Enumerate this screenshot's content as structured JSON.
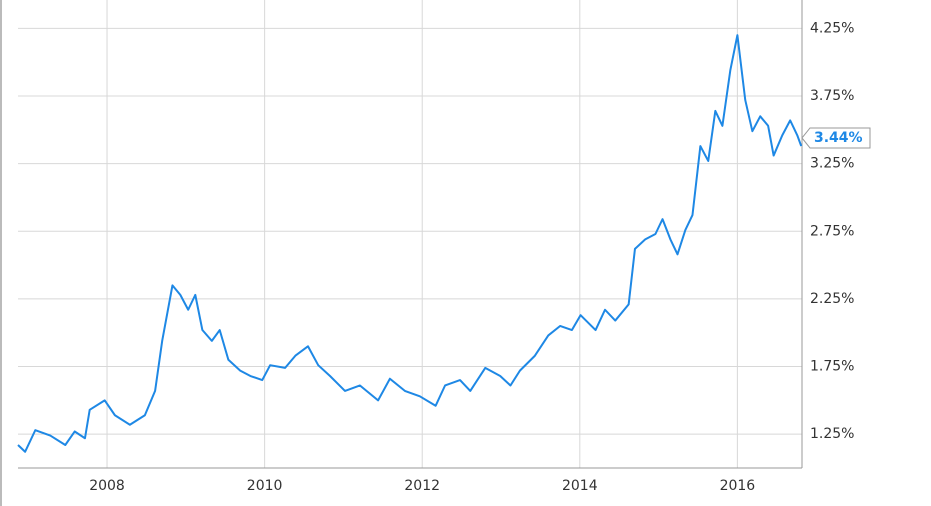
{
  "chart_data": {
    "type": "line",
    "x": [
      2006.87,
      2006.96,
      2007.09,
      2007.28,
      2007.47,
      2007.59,
      2007.72,
      2007.78,
      2007.97,
      2008.1,
      2008.29,
      2008.48,
      2008.61,
      2008.7,
      2008.83,
      2008.93,
      2009.03,
      2009.12,
      2009.21,
      2009.33,
      2009.43,
      2009.54,
      2009.69,
      2009.82,
      2009.97,
      2010.07,
      2010.26,
      2010.39,
      2010.55,
      2010.68,
      2010.83,
      2011.02,
      2011.21,
      2011.44,
      2011.59,
      2011.78,
      2011.97,
      2012.17,
      2012.29,
      2012.48,
      2012.61,
      2012.8,
      2012.99,
      2013.12,
      2013.24,
      2013.43,
      2013.6,
      2013.75,
      2013.9,
      2014.01,
      2014.2,
      2014.32,
      2014.45,
      2014.62,
      2014.7,
      2014.83,
      2014.96,
      2015.05,
      2015.15,
      2015.24,
      2015.34,
      2015.43,
      2015.53,
      2015.63,
      2015.72,
      2015.81,
      2015.91,
      2016.0,
      2016.1,
      2016.19,
      2016.29,
      2016.39,
      2016.46,
      2016.57,
      2016.67,
      2016.76,
      2016.81
    ],
    "series": [
      {
        "color": "#1e88e5",
        "values": [
          1.17,
          1.12,
          1.28,
          1.24,
          1.17,
          1.27,
          1.22,
          1.43,
          1.5,
          1.39,
          1.32,
          1.39,
          1.57,
          1.94,
          2.35,
          2.28,
          2.17,
          2.28,
          2.02,
          1.94,
          2.02,
          1.8,
          1.72,
          1.68,
          1.65,
          1.76,
          1.74,
          1.83,
          1.9,
          1.76,
          1.68,
          1.57,
          1.61,
          1.5,
          1.66,
          1.57,
          1.53,
          1.46,
          1.61,
          1.65,
          1.57,
          1.74,
          1.68,
          1.61,
          1.72,
          1.83,
          1.98,
          2.05,
          2.02,
          2.13,
          2.02,
          2.17,
          2.09,
          2.21,
          2.62,
          2.69,
          2.73,
          2.84,
          2.69,
          2.58,
          2.76,
          2.87,
          3.38,
          3.27,
          3.64,
          3.53,
          3.94,
          4.2,
          3.72,
          3.49,
          3.6,
          3.53,
          3.31,
          3.46,
          3.57,
          3.46,
          3.38
        ]
      }
    ],
    "current": {
      "value": 3.44,
      "label": "3.44%"
    },
    "xlim": [
      2006.87,
      2016.82
    ],
    "xticks": [
      2008,
      2010,
      2012,
      2014,
      2016
    ],
    "ylim": [
      1.0,
      4.46
    ],
    "yticks": [
      {
        "value": 1.25,
        "label": "1.25%"
      },
      {
        "value": 1.75,
        "label": "1.75%"
      },
      {
        "value": 2.25,
        "label": "2.25%"
      },
      {
        "value": 2.75,
        "label": "2.75%"
      },
      {
        "value": 3.25,
        "label": "3.25%"
      },
      {
        "value": 3.75,
        "label": "3.75%"
      },
      {
        "value": 4.25,
        "label": "4.25%"
      }
    ],
    "grid": true
  }
}
